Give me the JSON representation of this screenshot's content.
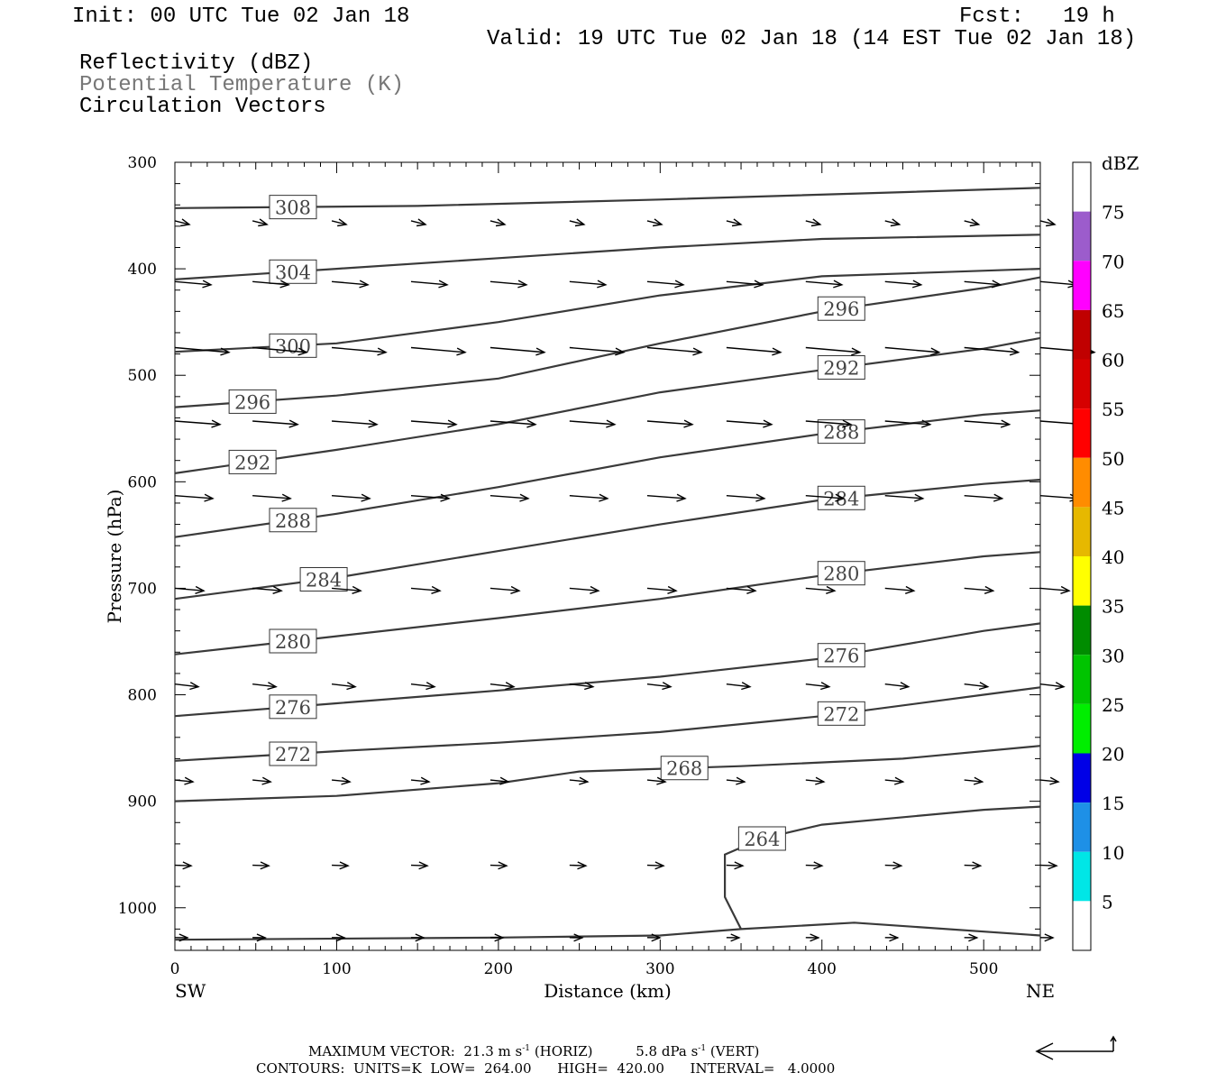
{
  "header": {
    "init": "Init: 00 UTC Tue 02 Jan 18",
    "fcst": "Fcst:   19 h",
    "valid": "Valid: 19 UTC Tue 02 Jan 18 (14 EST Tue 02 Jan 18)",
    "field1": "Reflectivity (dBZ)",
    "field2": "Potential Temperature (K)",
    "field3": "Circulation Vectors"
  },
  "footer": {
    "max_vector_label": "MAXIMUM VECTOR:",
    "horiz_value": "21.3 m s",
    "horiz_label": "(HORIZ)",
    "vert_value": "5.8 dPa s",
    "vert_label": "(VERT)",
    "exp": "-1",
    "contours_label": "CONTOURS:",
    "units": "UNITS=K",
    "low": "LOW=",
    "low_value": "264.00",
    "high": "HIGH=",
    "high_value": "420.00",
    "interval": "INTERVAL=",
    "interval_value": "4.0000"
  },
  "chart_data": {
    "type": "line",
    "xlabel": "Distance (km)",
    "ylabel": "Pressure (hPa)",
    "xlim": [
      0,
      535
    ],
    "ylim": [
      1040,
      300
    ],
    "x_ticks": [
      0,
      100,
      200,
      300,
      400,
      500
    ],
    "y_ticks": [
      300,
      400,
      500,
      600,
      700,
      800,
      900,
      1000
    ],
    "x_left_label": "SW",
    "x_right_label": "NE",
    "colorbar": {
      "title": "dBZ",
      "labels": [
        "5",
        "10",
        "15",
        "20",
        "25",
        "30",
        "35",
        "40",
        "45",
        "50",
        "55",
        "60",
        "65",
        "70",
        "75"
      ],
      "colors": [
        "#ffffff",
        "#00e6e6",
        "#1e90e6",
        "#0000e6",
        "#00ee00",
        "#00c400",
        "#008c00",
        "#ffff00",
        "#e6b800",
        "#ff8c00",
        "#ff0000",
        "#d60000",
        "#c00000",
        "#ff00ff",
        "#9c5ccc",
        "#ffffff"
      ]
    },
    "contours": [
      {
        "theta": 308,
        "label": "308",
        "label_at": 73,
        "points": [
          [
            0,
            343
          ],
          [
            150,
            341
          ],
          [
            300,
            335
          ],
          [
            450,
            328
          ],
          [
            535,
            324
          ]
        ]
      },
      {
        "theta": 304,
        "label": "304",
        "label_at": 73,
        "points": [
          [
            0,
            410
          ],
          [
            100,
            400
          ],
          [
            200,
            390
          ],
          [
            300,
            380
          ],
          [
            400,
            372
          ],
          [
            535,
            368
          ]
        ]
      },
      {
        "theta": 300,
        "label": "300",
        "label_at": 73,
        "points": [
          [
            0,
            478
          ],
          [
            100,
            470
          ],
          [
            200,
            450
          ],
          [
            300,
            425
          ],
          [
            400,
            407
          ],
          [
            535,
            400
          ]
        ]
      },
      {
        "theta": 296,
        "label": "296",
        "label_at": 48,
        "points": [
          [
            0,
            530
          ],
          [
            100,
            519
          ],
          [
            200,
            503
          ],
          [
            300,
            470
          ],
          [
            400,
            440
          ],
          [
            500,
            418
          ],
          [
            535,
            408
          ]
        ],
        "extra_label_at": 412
      },
      {
        "theta": 292,
        "label": "292",
        "label_at": 48,
        "points": [
          [
            0,
            592
          ],
          [
            100,
            570
          ],
          [
            200,
            546
          ],
          [
            300,
            516
          ],
          [
            400,
            495
          ],
          [
            500,
            475
          ],
          [
            535,
            465
          ]
        ],
        "extra_label_at": 412
      },
      {
        "theta": 288,
        "label": "288",
        "label_at": 73,
        "points": [
          [
            0,
            652
          ],
          [
            100,
            630
          ],
          [
            200,
            605
          ],
          [
            300,
            577
          ],
          [
            400,
            555
          ],
          [
            500,
            537
          ],
          [
            535,
            533
          ]
        ],
        "extra_label_at": 412
      },
      {
        "theta": 284,
        "label": "284",
        "label_at": 92,
        "points": [
          [
            0,
            710
          ],
          [
            100,
            690
          ],
          [
            200,
            665
          ],
          [
            300,
            640
          ],
          [
            400,
            617
          ],
          [
            500,
            602
          ],
          [
            535,
            598
          ]
        ],
        "extra_label_at": 412
      },
      {
        "theta": 280,
        "label": "280",
        "label_at": 73,
        "points": [
          [
            0,
            762
          ],
          [
            100,
            745
          ],
          [
            200,
            728
          ],
          [
            300,
            710
          ],
          [
            400,
            688
          ],
          [
            500,
            670
          ],
          [
            535,
            666
          ]
        ],
        "extra_label_at": 412
      },
      {
        "theta": 276,
        "label": "276",
        "label_at": 73,
        "points": [
          [
            0,
            820
          ],
          [
            100,
            808
          ],
          [
            200,
            796
          ],
          [
            300,
            783
          ],
          [
            400,
            766
          ],
          [
            500,
            740
          ],
          [
            535,
            733
          ]
        ],
        "extra_label_at": 412
      },
      {
        "theta": 272,
        "label": "272",
        "label_at": 73,
        "points": [
          [
            0,
            862
          ],
          [
            100,
            853
          ],
          [
            200,
            845
          ],
          [
            300,
            835
          ],
          [
            400,
            820
          ],
          [
            500,
            800
          ],
          [
            535,
            793
          ]
        ],
        "extra_label_at": 412
      },
      {
        "theta": 268,
        "label": "268",
        "label_at": 315,
        "points": [
          [
            0,
            900
          ],
          [
            100,
            895
          ],
          [
            200,
            883
          ],
          [
            250,
            872
          ],
          [
            350,
            867
          ],
          [
            450,
            860
          ],
          [
            535,
            848
          ]
        ]
      },
      {
        "theta": 264,
        "label": "264",
        "label_at": 363,
        "points": [
          [
            350,
            1020
          ],
          [
            340,
            990
          ],
          [
            340,
            950
          ],
          [
            363,
            935
          ],
          [
            400,
            922
          ],
          [
            500,
            908
          ],
          [
            535,
            905
          ]
        ]
      },
      {
        "theta": 264,
        "label": "",
        "label_at": null,
        "points": [
          [
            0,
            1030
          ],
          [
            200,
            1028
          ],
          [
            300,
            1026
          ],
          [
            350,
            1020
          ],
          [
            420,
            1014
          ],
          [
            535,
            1026
          ]
        ]
      }
    ],
    "vector_rows": [
      {
        "p": 355,
        "u": 0.4,
        "dp": 1.0
      },
      {
        "p": 412,
        "u": 1.0,
        "dp": 0.35
      },
      {
        "p": 474,
        "u": 1.5,
        "dp": 0.35
      },
      {
        "p": 543,
        "u": 1.25,
        "dp": 0.3
      },
      {
        "p": 613,
        "u": 1.05,
        "dp": 0.3
      },
      {
        "p": 700,
        "u": 0.8,
        "dp": 0.35
      },
      {
        "p": 790,
        "u": 0.65,
        "dp": 0.45
      },
      {
        "p": 880,
        "u": 0.5,
        "dp": 0.4
      },
      {
        "p": 960,
        "u": 0.45,
        "dp": 0.15
      },
      {
        "p": 1028,
        "u": 0.35,
        "dp": 0.05
      }
    ],
    "vector_x": [
      0,
      48,
      97,
      146,
      195,
      244,
      292,
      341,
      390,
      439,
      488,
      535
    ]
  }
}
